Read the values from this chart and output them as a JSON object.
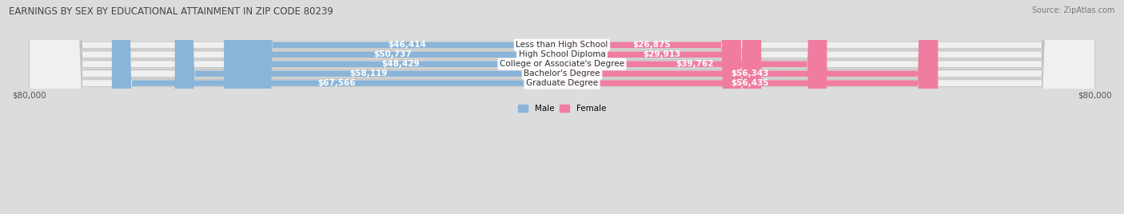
{
  "title": "EARNINGS BY SEX BY EDUCATIONAL ATTAINMENT IN ZIP CODE 80239",
  "source": "Source: ZipAtlas.com",
  "categories": [
    "Less than High School",
    "High School Diploma",
    "College or Associate's Degree",
    "Bachelor's Degree",
    "Graduate Degree"
  ],
  "male_values": [
    46414,
    50737,
    48429,
    58119,
    67566
  ],
  "female_values": [
    26875,
    29913,
    39762,
    56343,
    56435
  ],
  "male_color": "#8ab4d8",
  "female_color": "#f07ca0",
  "max_value": 80000,
  "background_color": "#dcdcdc",
  "row_bg_color": "#f0f0f0",
  "title_fontsize": 8.5,
  "label_fontsize": 7.5,
  "tick_fontsize": 7.5,
  "source_fontsize": 7.0,
  "bar_height": 0.72,
  "row_sep_color": "#c8c8c8"
}
